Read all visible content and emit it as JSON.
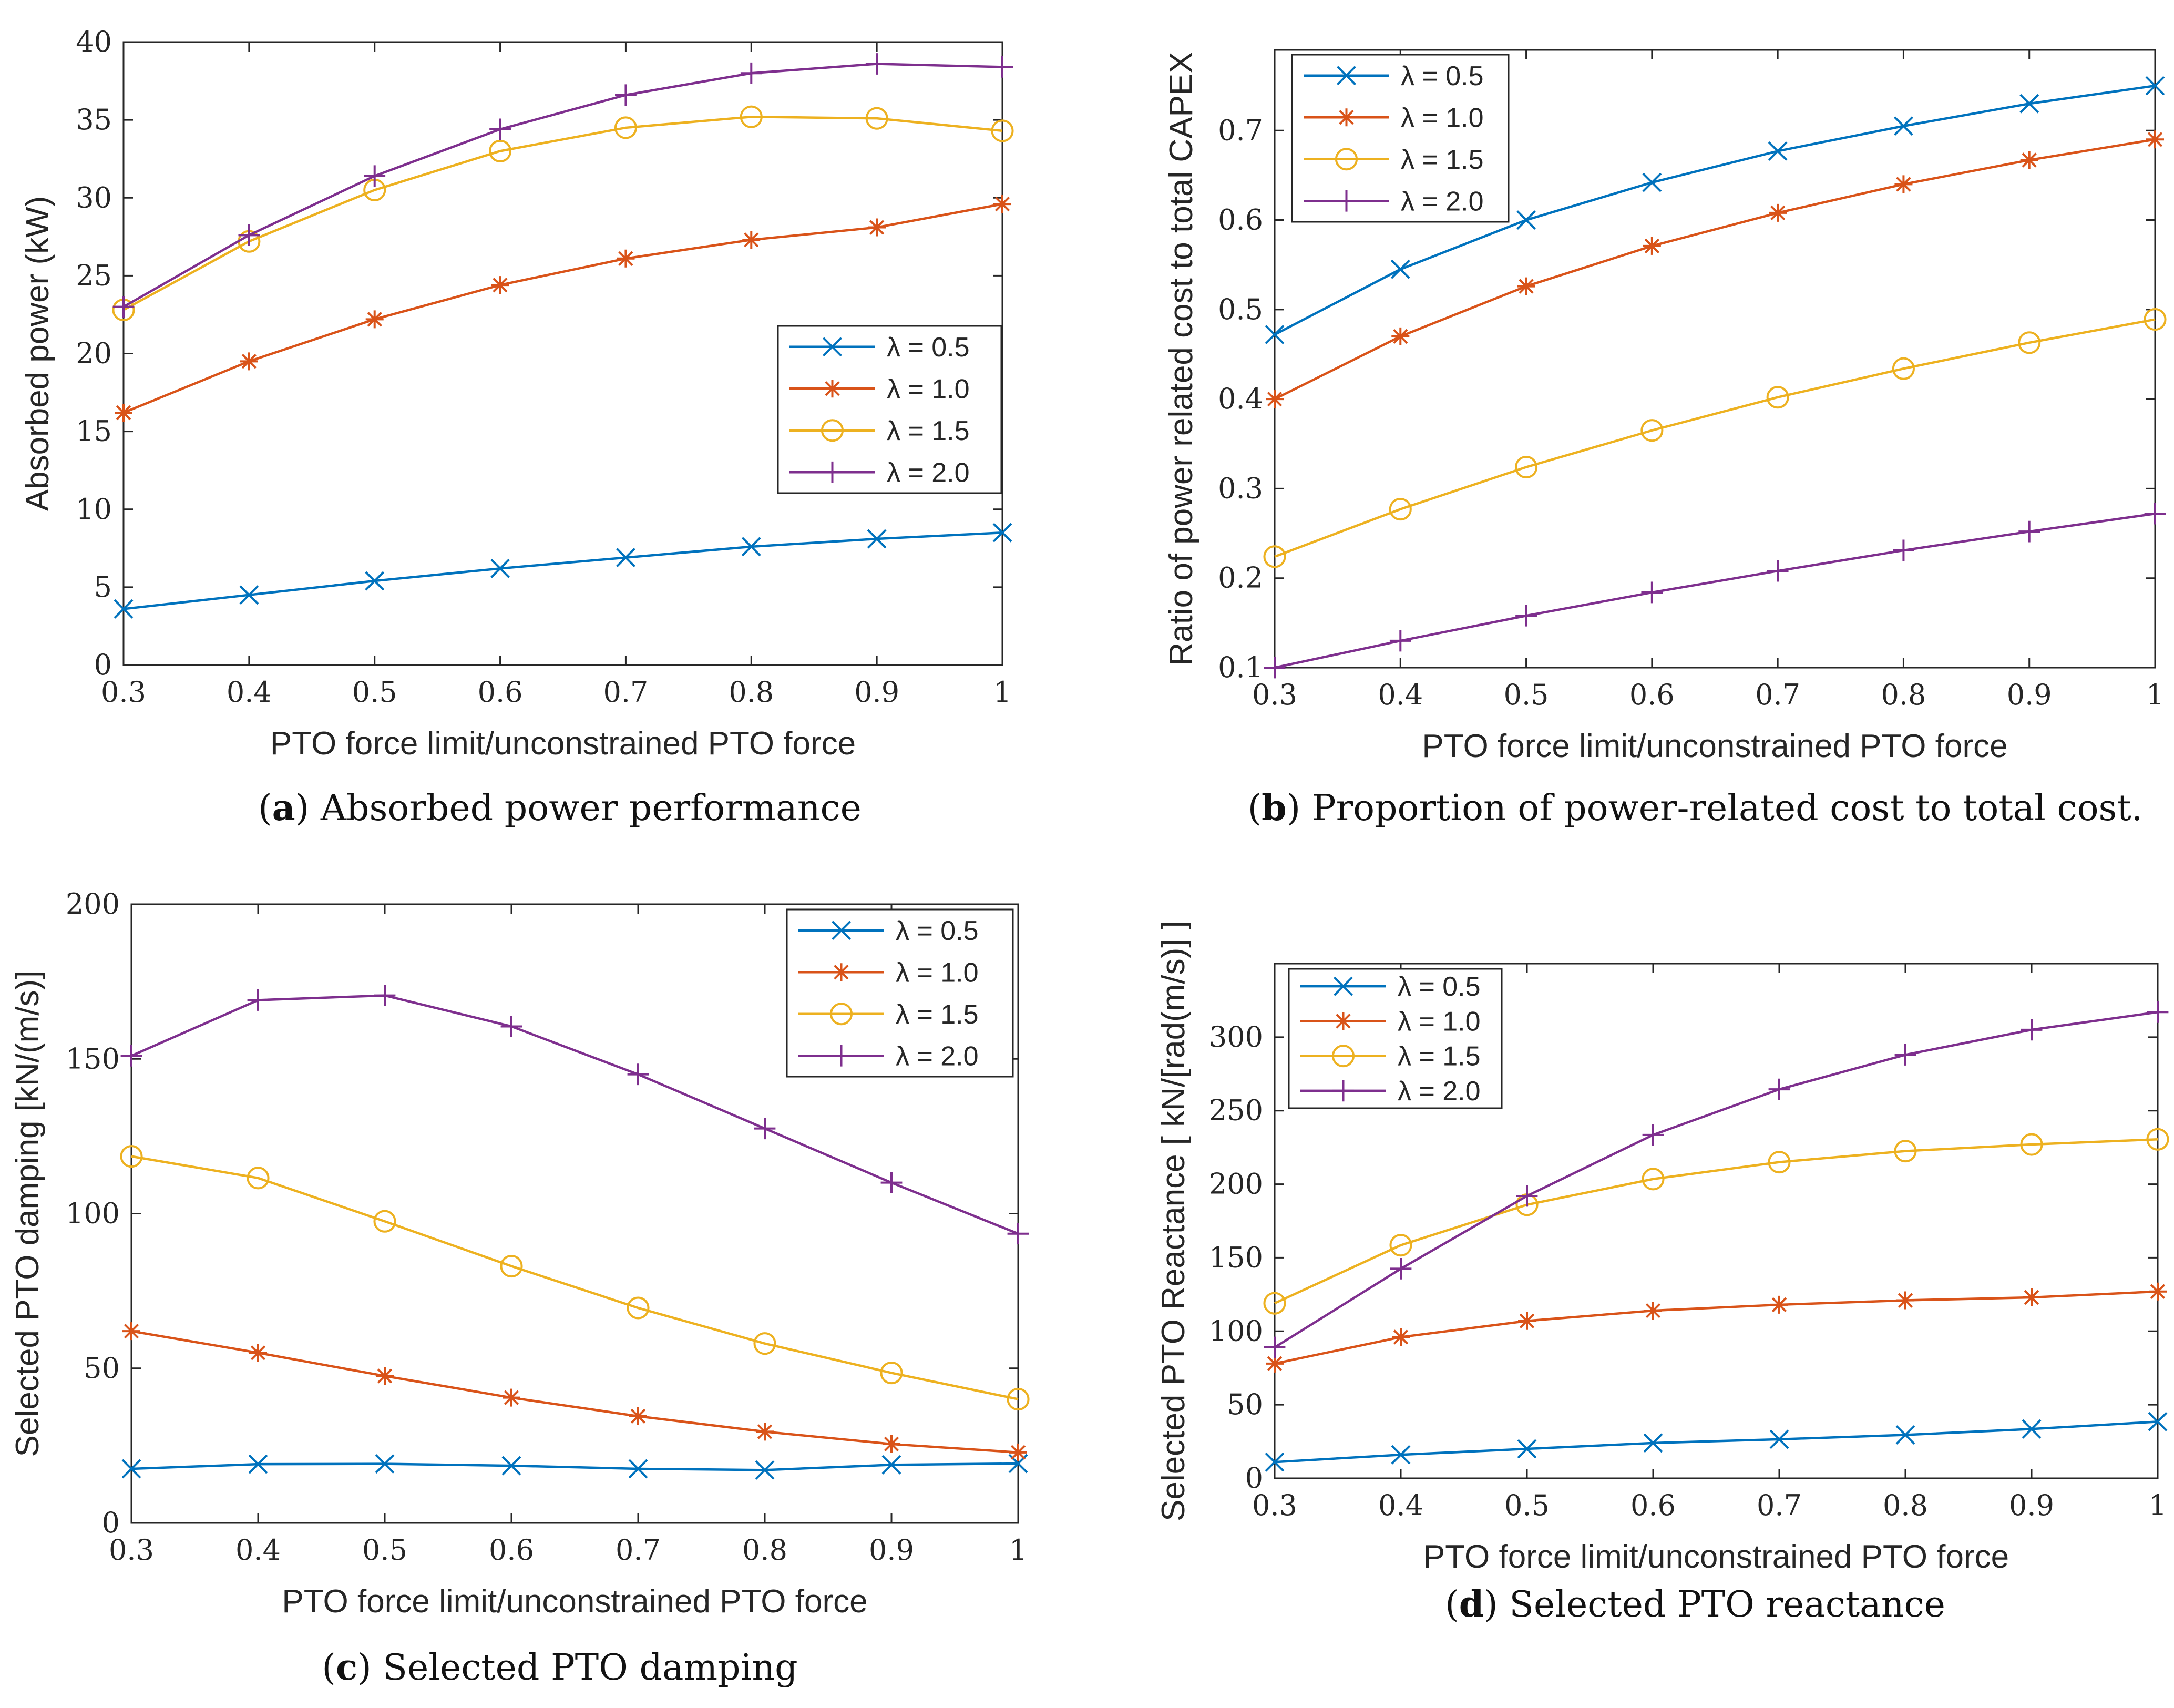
{
  "chart_data": [
    {
      "type": "line",
      "caption_letter": "a",
      "caption_text": " Absorbed power performance",
      "xlabel": "PTO force limit/unconstrained PTO force",
      "ylabel": "Absorbed power (kW)",
      "xlim": [
        0.3,
        1
      ],
      "ylim": [
        0,
        40
      ],
      "xticks": [
        "0.3",
        "0.4",
        "0.5",
        "0.6",
        "0.7",
        "0.8",
        "0.9",
        "1"
      ],
      "yticks": [
        "0",
        "5",
        "10",
        "15",
        "20",
        "25",
        "30",
        "35",
        "40"
      ],
      "legend_position": "center-right",
      "x": [
        0.3,
        0.4,
        0.5,
        0.6,
        0.7,
        0.8,
        0.9,
        1.0
      ],
      "series": [
        {
          "name": "λ = 0.5",
          "color": "#0072BD",
          "marker": "x",
          "values": [
            3.6,
            4.5,
            5.4,
            6.2,
            6.9,
            7.6,
            8.1,
            8.5
          ]
        },
        {
          "name": "λ = 1.0",
          "color": "#D95319",
          "marker": "star",
          "values": [
            16.2,
            19.5,
            22.2,
            24.4,
            26.1,
            27.3,
            28.1,
            29.6
          ]
        },
        {
          "name": "λ = 1.5",
          "color": "#EDB120",
          "marker": "circle",
          "values": [
            22.8,
            27.2,
            30.5,
            33.0,
            34.5,
            35.2,
            35.1,
            34.3
          ]
        },
        {
          "name": "λ = 2.0",
          "color": "#7E2F8E",
          "marker": "plus",
          "values": [
            23.0,
            27.6,
            31.4,
            34.4,
            36.6,
            38.0,
            38.6,
            38.4
          ]
        }
      ]
    },
    {
      "type": "line",
      "caption_letter": "b",
      "caption_text": " Proportion of power-related cost to total cost.",
      "xlabel": "PTO force limit/unconstrained PTO force",
      "ylabel": "Ratio of power related cost to total CAPEX",
      "xlim": [
        0.3,
        1
      ],
      "ylim": [
        0.1,
        0.79
      ],
      "xticks": [
        "0.3",
        "0.4",
        "0.5",
        "0.6",
        "0.7",
        "0.8",
        "0.9",
        "1"
      ],
      "yticks": [
        "0.1",
        "0.2",
        "0.3",
        "0.4",
        "0.5",
        "0.6",
        "0.7"
      ],
      "legend_position": "top-left",
      "x": [
        0.3,
        0.4,
        0.5,
        0.6,
        0.7,
        0.8,
        0.9,
        1.0
      ],
      "series": [
        {
          "name": "λ = 0.5",
          "color": "#0072BD",
          "marker": "x",
          "values": [
            0.472,
            0.545,
            0.6,
            0.642,
            0.677,
            0.705,
            0.73,
            0.75
          ]
        },
        {
          "name": "λ = 1.0",
          "color": "#D95319",
          "marker": "star",
          "values": [
            0.4,
            0.47,
            0.526,
            0.571,
            0.608,
            0.64,
            0.667,
            0.69
          ]
        },
        {
          "name": "λ = 1.5",
          "color": "#EDB120",
          "marker": "circle",
          "values": [
            0.224,
            0.277,
            0.324,
            0.365,
            0.402,
            0.434,
            0.463,
            0.489
          ]
        },
        {
          "name": "λ = 2.0",
          "color": "#7E2F8E",
          "marker": "plus",
          "values": [
            0.1,
            0.13,
            0.158,
            0.184,
            0.208,
            0.231,
            0.252,
            0.272
          ]
        }
      ]
    },
    {
      "type": "line",
      "caption_letter": "c",
      "caption_text": " Selected PTO damping",
      "xlabel": "PTO force limit/unconstrained PTO force",
      "ylabel": "Selected PTO damping [kN/(m/s)]",
      "xlim": [
        0.3,
        1
      ],
      "ylim": [
        0,
        200
      ],
      "xticks": [
        "0.3",
        "0.4",
        "0.5",
        "0.6",
        "0.7",
        "0.8",
        "0.9",
        "1"
      ],
      "yticks": [
        "0",
        "50",
        "100",
        "150",
        "200"
      ],
      "legend_position": "top-right",
      "x": [
        0.3,
        0.4,
        0.5,
        0.6,
        0.7,
        0.8,
        0.9,
        1.0
      ],
      "series": [
        {
          "name": "λ = 0.5",
          "color": "#0072BD",
          "marker": "x",
          "values": [
            17.5,
            19.0,
            19.1,
            18.5,
            17.5,
            17.1,
            18.8,
            19.2
          ]
        },
        {
          "name": "λ = 1.0",
          "color": "#D95319",
          "marker": "star",
          "values": [
            62.0,
            55.0,
            47.5,
            40.5,
            34.5,
            29.5,
            25.5,
            22.8
          ]
        },
        {
          "name": "λ = 1.5",
          "color": "#EDB120",
          "marker": "circle",
          "values": [
            118.5,
            111.5,
            97.5,
            83.0,
            69.5,
            58.0,
            48.5,
            40.0
          ]
        },
        {
          "name": "λ = 2.0",
          "color": "#7E2F8E",
          "marker": "plus",
          "values": [
            151.0,
            169.0,
            170.5,
            160.5,
            145.0,
            127.5,
            110.0,
            93.5
          ]
        }
      ]
    },
    {
      "type": "line",
      "caption_letter": "d",
      "caption_text": " Selected PTO reactance",
      "xlabel": "PTO force limit/unconstrained PTO force",
      "ylabel": "Selected PTO Reactance [ kN/[rad(m/s)] ]",
      "xlim": [
        0.3,
        1
      ],
      "ylim": [
        0,
        350
      ],
      "xticks": [
        "0.3",
        "0.4",
        "0.5",
        "0.6",
        "0.7",
        "0.8",
        "0.9",
        "1"
      ],
      "yticks": [
        "0",
        "50",
        "100",
        "150",
        "200",
        "250",
        "300"
      ],
      "legend_position": "top-left",
      "x": [
        0.3,
        0.4,
        0.5,
        0.6,
        0.7,
        0.8,
        0.9,
        1.0
      ],
      "series": [
        {
          "name": "λ = 0.5",
          "color": "#0072BD",
          "marker": "x",
          "values": [
            11.0,
            16.0,
            20.0,
            24.0,
            26.5,
            29.5,
            33.5,
            38.5
          ]
        },
        {
          "name": "λ = 1.0",
          "color": "#D95319",
          "marker": "star",
          "values": [
            78.0,
            96.0,
            107.0,
            114.0,
            118.0,
            121.0,
            123.0,
            127.0
          ]
        },
        {
          "name": "λ = 1.5",
          "color": "#EDB120",
          "marker": "circle",
          "values": [
            119.0,
            158.5,
            186.0,
            203.5,
            215.0,
            222.5,
            227.0,
            230.5
          ]
        },
        {
          "name": "λ = 2.0",
          "color": "#7E2F8E",
          "marker": "plus",
          "values": [
            89.0,
            142.5,
            192.0,
            233.5,
            264.5,
            288.0,
            305.0,
            317.0
          ]
        }
      ]
    }
  ]
}
